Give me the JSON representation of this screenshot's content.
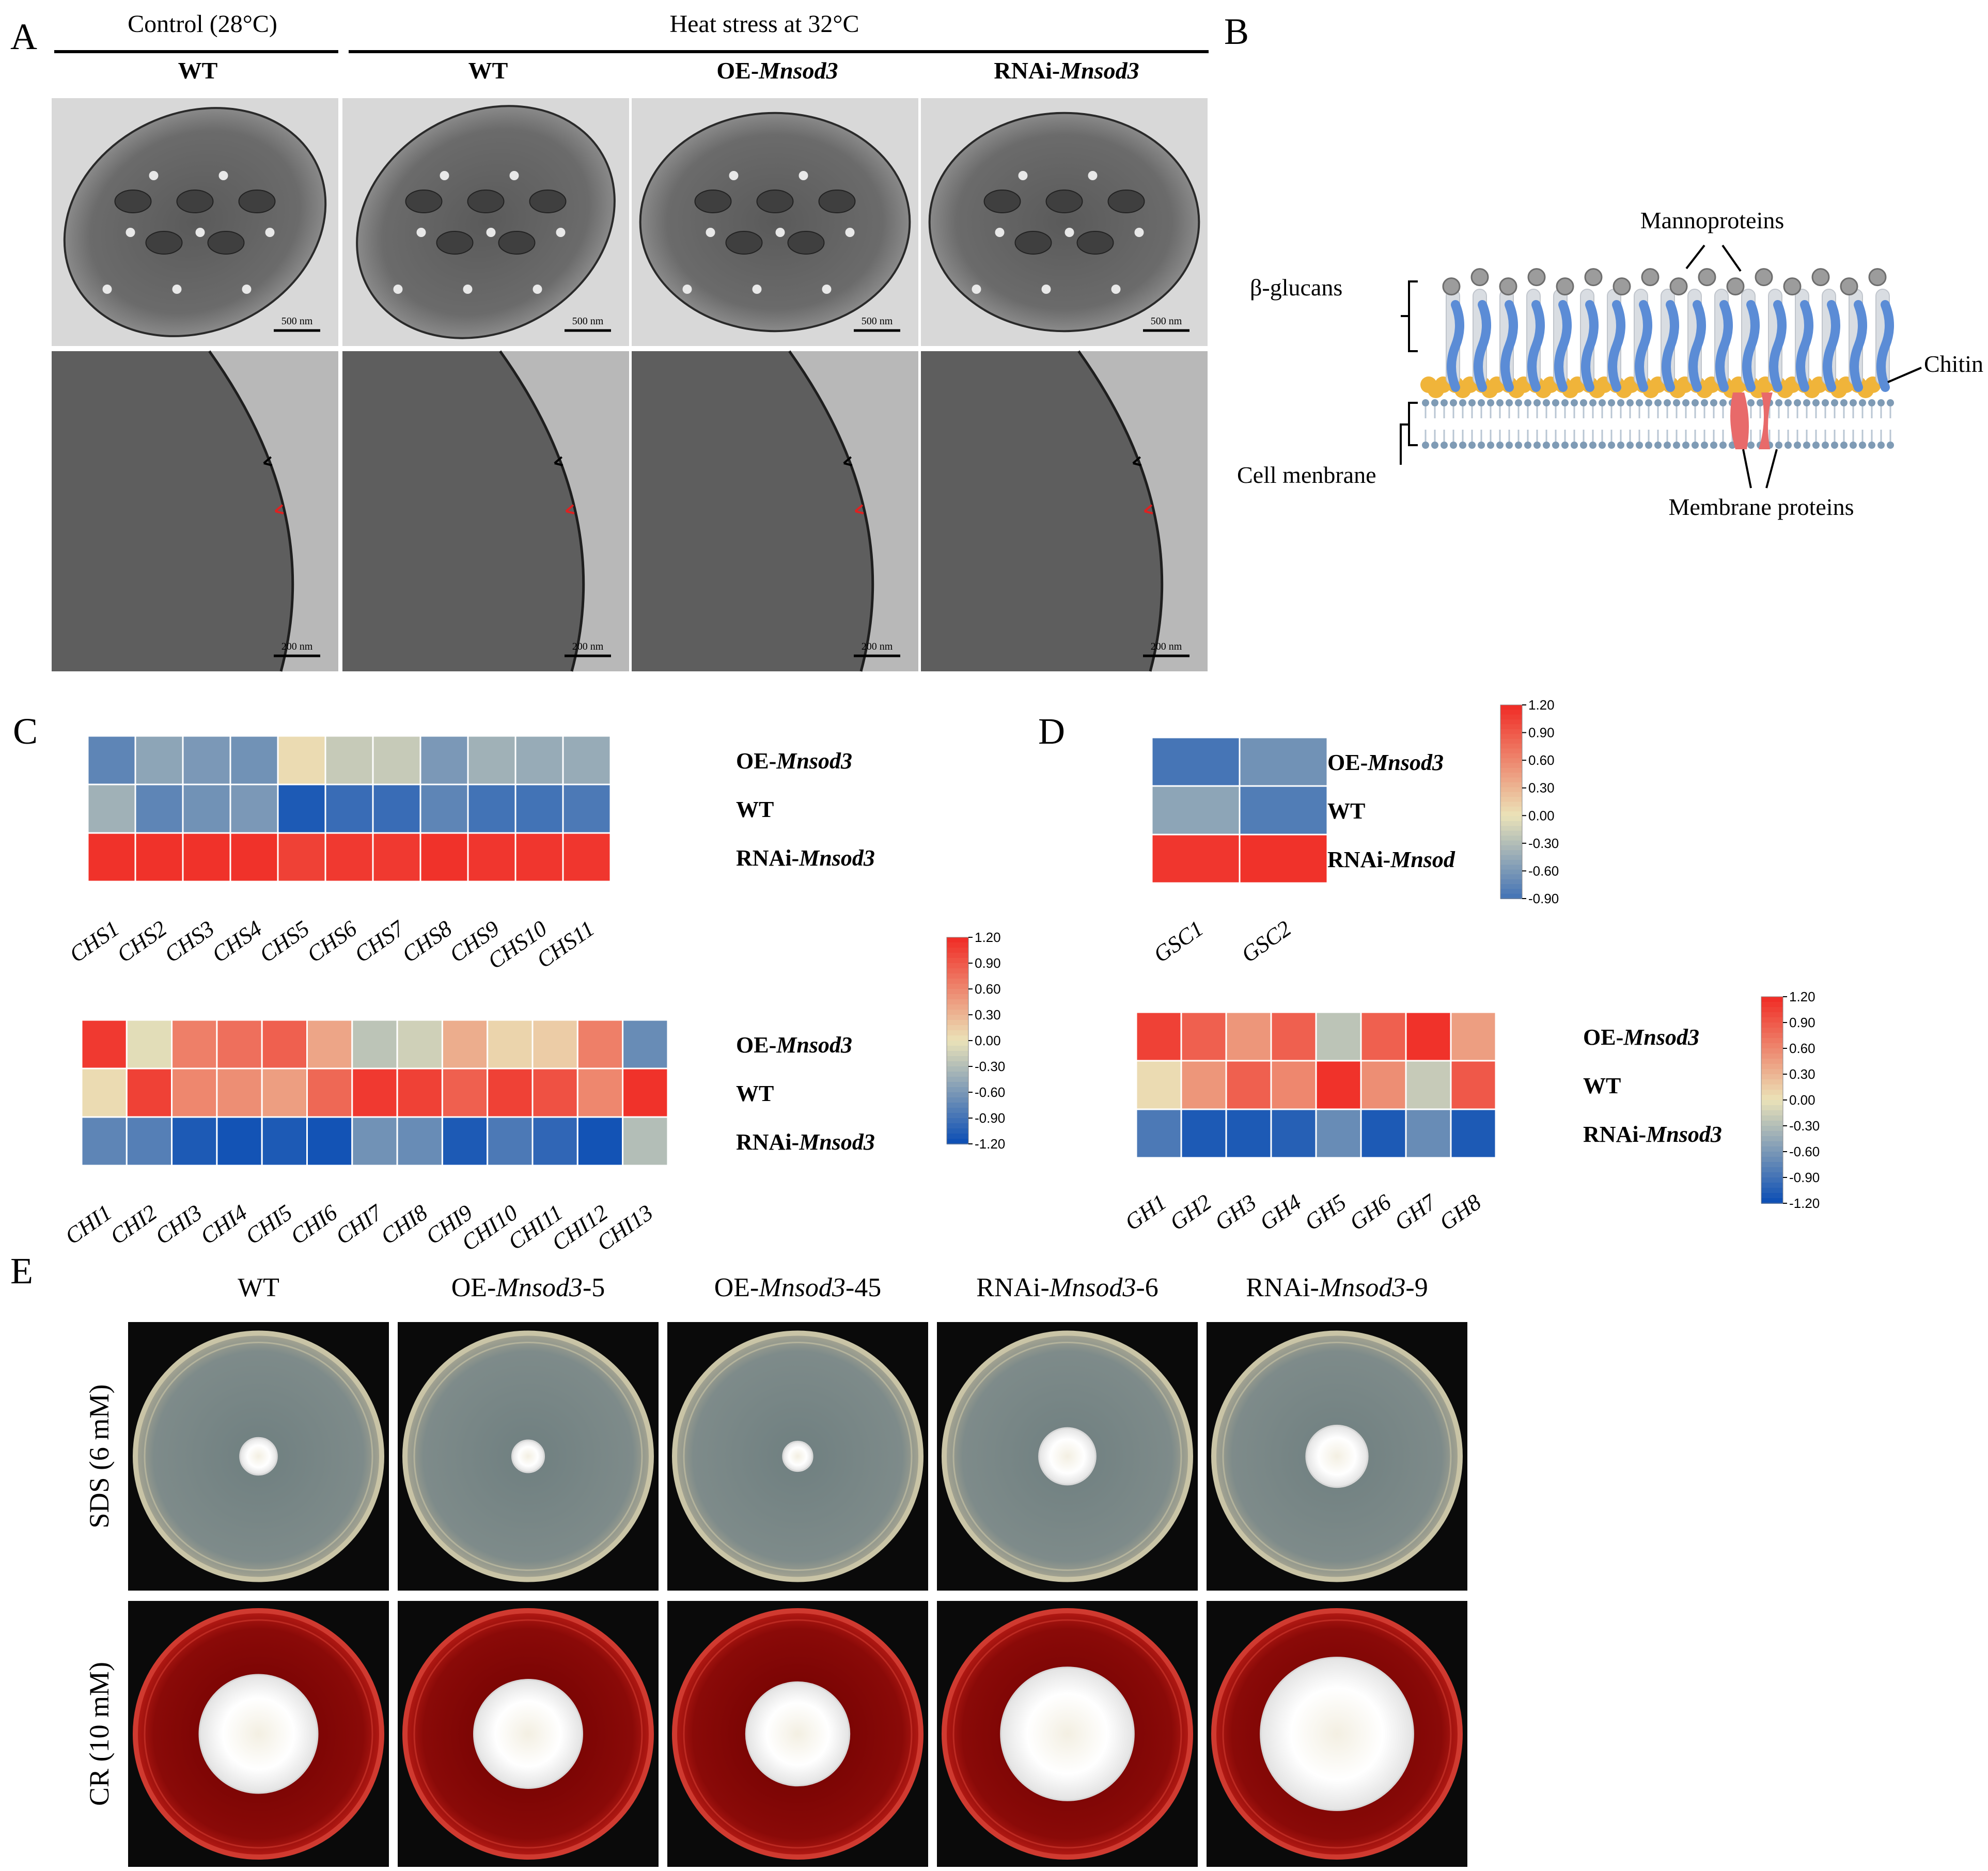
{
  "panels": {
    "a": {
      "letter": "A",
      "control_header": "Control (28°C)",
      "heat_header": "Heat stress at 32°C",
      "columns": [
        {
          "pre": "WT",
          "em": "",
          "post": ""
        },
        {
          "pre": "WT",
          "em": "",
          "post": ""
        },
        {
          "pre": "OE-",
          "em": "Mnsod3",
          "post": ""
        },
        {
          "pre": "RNAi-",
          "em": "Mnsod3",
          "post": ""
        }
      ],
      "scale_top": "500 nm",
      "scale_bottom": "200 nm"
    },
    "b": {
      "letter": "B",
      "labels": {
        "mannoproteins": "Mannoproteins",
        "beta_glucans": "β-glucans",
        "chitin": "Chitin",
        "cell_membrane": "Cell menbrane",
        "membrane_proteins": "Membrane proteins"
      }
    },
    "c": {
      "letter": "C"
    },
    "d": {
      "letter": "D"
    },
    "e": {
      "letter": "E",
      "columns": [
        {
          "pre": "WT",
          "em": "",
          "post": ""
        },
        {
          "pre": "OE-",
          "em": "Mnsod3",
          "post": "-5"
        },
        {
          "pre": "OE-",
          "em": "Mnsod3",
          "post": "-45"
        },
        {
          "pre": "RNAi-",
          "em": "Mnsod3",
          "post": "-6"
        },
        {
          "pre": "RNAi-",
          "em": "Mnsod3",
          "post": "-9"
        }
      ],
      "rows": [
        "SDS (6 mM)",
        "CR (10 mM)"
      ],
      "colony_diameter_relative": [
        [
          0.15,
          0.13,
          0.12,
          0.23,
          0.25
        ],
        [
          0.48,
          0.44,
          0.42,
          0.54,
          0.62
        ]
      ]
    }
  },
  "heatmap_colors": {
    "low": "#0a4db5",
    "mid": "#ebe3b8",
    "high": "#f02a24"
  },
  "chart_data": [
    {
      "type": "heatmap",
      "id": "C-top",
      "columns": [
        "CHS1",
        "CHS2",
        "CHS3",
        "CHS4",
        "CHS5",
        "CHS6",
        "CHS7",
        "CHS8",
        "CHS9",
        "CHS10",
        "CHS11"
      ],
      "rows": [
        {
          "pre": "OE-",
          "em": "Mnsod3",
          "post": ""
        },
        {
          "pre": "WT",
          "em": "",
          "post": ""
        },
        {
          "pre": "RNAi-",
          "em": "Mnsod3",
          "post": ""
        }
      ],
      "values": [
        [
          -0.75,
          -0.5,
          -0.6,
          -0.65,
          0.05,
          -0.2,
          -0.2,
          -0.6,
          -0.4,
          -0.45,
          -0.45
        ],
        [
          -0.4,
          -0.75,
          -0.65,
          -0.6,
          -1.1,
          -0.95,
          -0.95,
          -0.75,
          -0.9,
          -0.9,
          -0.85
        ],
        [
          1.15,
          1.15,
          1.15,
          1.15,
          1.05,
          1.1,
          1.1,
          1.15,
          1.12,
          1.12,
          1.12
        ]
      ],
      "scale": {
        "min": -1.2,
        "max": 1.2,
        "ticks": [
          "1.20",
          "0.90",
          "0.60",
          "0.30",
          "0.00",
          "-0.30",
          "-0.60",
          "-0.90",
          "-1.20"
        ]
      }
    },
    {
      "type": "heatmap",
      "id": "C-bottom",
      "columns": [
        "CHI1",
        "CHI2",
        "CHI3",
        "CHI4",
        "CHI5",
        "CHI6",
        "CHI7",
        "CHI8",
        "CHI9",
        "CHI10",
        "CHI11",
        "CHI12",
        "CHI13"
      ],
      "rows": [
        {
          "pre": "OE-",
          "em": "Mnsod3",
          "post": ""
        },
        {
          "pre": "WT",
          "em": "",
          "post": ""
        },
        {
          "pre": "RNAi-",
          "em": "Mnsod3",
          "post": ""
        }
      ],
      "values": [
        [
          1.1,
          -0.05,
          0.65,
          0.75,
          0.85,
          0.4,
          -0.25,
          -0.15,
          0.35,
          0.1,
          0.15,
          0.65,
          -0.7
        ],
        [
          0.05,
          1.05,
          0.6,
          0.55,
          0.45,
          0.8,
          1.1,
          1.05,
          0.85,
          1.05,
          0.95,
          0.6,
          1.15
        ],
        [
          -0.75,
          -0.8,
          -1.1,
          -1.15,
          -1.1,
          -1.15,
          -0.65,
          -0.7,
          -1.1,
          -0.85,
          -1.0,
          -1.15,
          -0.3
        ]
      ],
      "scale": {
        "min": -1.2,
        "max": 1.2,
        "ticks": [
          "1.20",
          "0.90",
          "0.60",
          "0.30",
          "0.00",
          "-0.30",
          "-0.60",
          "-0.90",
          "-1.20"
        ]
      }
    },
    {
      "type": "heatmap",
      "id": "D-top",
      "columns": [
        "GSC1",
        "GSC2"
      ],
      "rows": [
        {
          "pre": "OE-",
          "em": "Mnsod3",
          "post": ""
        },
        {
          "pre": "WT",
          "em": "",
          "post": ""
        },
        {
          "pre": "RNAi-",
          "em": "Mnsod",
          "post": ""
        }
      ],
      "values": [
        [
          -0.88,
          -0.65
        ],
        [
          -0.5,
          -0.82
        ],
        [
          1.12,
          1.15
        ]
      ],
      "scale": {
        "min": -0.9,
        "max": 1.2,
        "ticks": [
          "1.20",
          "0.90",
          "0.60",
          "0.30",
          "0.00",
          "-0.30",
          "-0.60",
          "-0.90"
        ]
      }
    },
    {
      "type": "heatmap",
      "id": "D-bottom",
      "columns": [
        "GH1",
        "GH2",
        "GH3",
        "GH4",
        "GH5",
        "GH6",
        "GH7",
        "GH8"
      ],
      "rows": [
        {
          "pre": "OE-",
          "em": "Mnsod3",
          "post": ""
        },
        {
          "pre": "WT",
          "em": "",
          "post": ""
        },
        {
          "pre": "RNAi-",
          "em": "Mnsod3",
          "post": ""
        }
      ],
      "values": [
        [
          1.05,
          0.85,
          0.5,
          0.85,
          -0.25,
          0.85,
          1.15,
          0.45
        ],
        [
          0.05,
          0.5,
          0.85,
          0.6,
          1.15,
          0.55,
          -0.2,
          0.9
        ],
        [
          -0.85,
          -1.1,
          -1.1,
          -1.05,
          -0.7,
          -1.1,
          -0.7,
          -1.1
        ]
      ],
      "scale": {
        "min": -1.2,
        "max": 1.2,
        "ticks": [
          "1.20",
          "0.90",
          "0.60",
          "0.30",
          "0.00",
          "-0.30",
          "-0.60",
          "-0.90",
          "-1.20"
        ]
      }
    }
  ]
}
